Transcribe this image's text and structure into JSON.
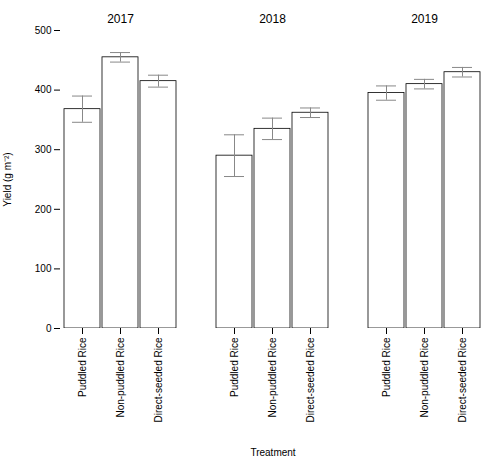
{
  "chart_data": {
    "type": "bar",
    "categories": [
      "2017",
      "2018",
      "2019"
    ],
    "series": [
      {
        "name": "Puddled Rice",
        "values": [
          368,
          290,
          395
        ],
        "errors": [
          22,
          35,
          12
        ]
      },
      {
        "name": "Non-puddled Rice",
        "values": [
          455,
          335,
          410
        ],
        "errors": [
          8,
          18,
          8
        ]
      },
      {
        "name": "Direct-seeded Rice",
        "values": [
          415,
          362,
          430
        ],
        "errors": [
          10,
          8,
          8
        ]
      }
    ],
    "color": "#ffffff",
    "xlabel": "Treatment",
    "ylabel": "Yield (g m⁻²)",
    "ylim": [
      0,
      500
    ],
    "yticks": [
      0,
      100,
      200,
      300,
      400,
      500
    ],
    "grid": false
  }
}
